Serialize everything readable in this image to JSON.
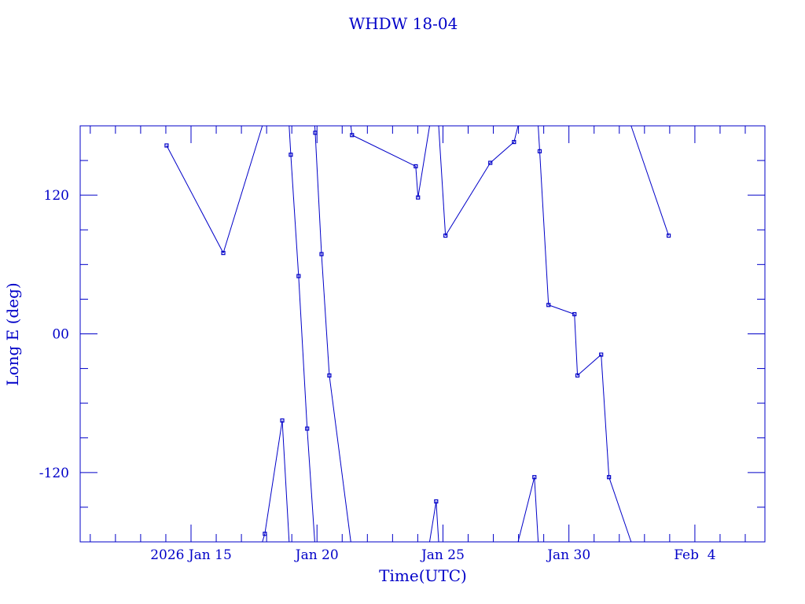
{
  "chart_data": {
    "type": "line",
    "title": "WHDW 18-04",
    "xlabel": "Time(UTC)",
    "ylabel": "Long E (deg)",
    "x_units": "day of Jan 2026 (Feb 1 = 32)",
    "xlim": [
      10.6,
      37.78
    ],
    "ylim": [
      -180,
      180
    ],
    "x_ticks": [
      {
        "value": 15,
        "label": "2026 Jan 15"
      },
      {
        "value": 20,
        "label": "Jan 20"
      },
      {
        "value": 25,
        "label": "Jan 25"
      },
      {
        "value": 30,
        "label": "Jan 30"
      },
      {
        "value": 35,
        "label": "Feb  4"
      }
    ],
    "y_ticks": [
      {
        "value": 120,
        "label": "120"
      },
      {
        "value": 0,
        "label": "00"
      },
      {
        "value": -120,
        "label": "-120"
      }
    ],
    "color": "#0000c8",
    "wrap": 360,
    "points": [
      [
        14.03,
        163
      ],
      [
        16.28,
        70
      ],
      [
        17.93,
        -173
      ],
      [
        18.62,
        -75
      ],
      [
        18.96,
        155
      ],
      [
        19.27,
        50
      ],
      [
        19.61,
        -82
      ],
      [
        19.93,
        174
      ],
      [
        20.18,
        69
      ],
      [
        20.49,
        -36
      ],
      [
        21.39,
        172
      ],
      [
        23.92,
        145
      ],
      [
        24.01,
        118
      ],
      [
        24.73,
        -145
      ],
      [
        25.1,
        85
      ],
      [
        26.88,
        148
      ],
      [
        27.82,
        166
      ],
      [
        28.63,
        -124
      ],
      [
        28.84,
        158
      ],
      [
        29.19,
        25
      ],
      [
        30.22,
        17
      ],
      [
        30.34,
        -36
      ],
      [
        31.28,
        -18
      ],
      [
        31.59,
        -124
      ],
      [
        33.96,
        85
      ]
    ]
  }
}
